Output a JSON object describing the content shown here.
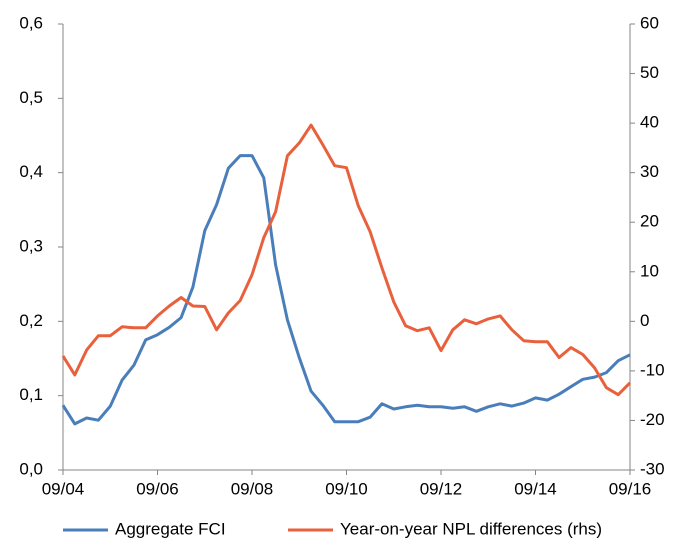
{
  "chart_data": {
    "type": "line",
    "categories": [
      "09/04",
      null,
      null,
      null,
      null,
      null,
      null,
      null,
      "09/06",
      null,
      null,
      null,
      null,
      null,
      null,
      null,
      "09/08",
      null,
      null,
      null,
      null,
      null,
      null,
      null,
      "09/10",
      null,
      null,
      null,
      null,
      null,
      null,
      null,
      "09/12",
      null,
      null,
      null,
      null,
      null,
      null,
      null,
      "09/14",
      null,
      null,
      null,
      null,
      null,
      null,
      null,
      "09/16"
    ],
    "series": [
      {
        "name": "Aggregate FCI",
        "color": "#4a7ebb",
        "values": [
          0.087,
          0.062,
          0.07,
          0.067,
          0.086,
          0.121,
          0.141,
          0.175,
          0.182,
          0.192,
          0.205,
          0.246,
          0.322,
          0.357,
          0.406,
          0.423,
          0.423,
          0.393,
          0.276,
          0.202,
          0.151,
          0.106,
          0.087,
          0.065,
          0.065,
          0.065,
          0.071,
          0.089,
          0.082,
          0.085,
          0.087,
          0.085,
          0.085,
          0.083,
          0.085,
          0.079,
          0.085,
          0.089,
          0.086,
          0.09,
          0.097,
          0.094,
          0.102,
          0.112,
          0.122,
          0.125,
          0.131,
          0.147,
          0.155
        ]
      },
      {
        "name": "Year-on-year NPL differences (rhs)",
        "color": "#e8603c",
        "axis": "y2",
        "values": [
          -7,
          -10.8,
          -5.8,
          -2.9,
          -2.9,
          -1.1,
          -1.3,
          -1.3,
          1.1,
          3.1,
          4.8,
          3.1,
          3,
          -1.7,
          1.7,
          4.2,
          9.4,
          16.9,
          22.1,
          33.4,
          36,
          39.6,
          35.6,
          31.4,
          31,
          23.3,
          18.1,
          10.8,
          3.9,
          -0.9,
          -1.9,
          -1.3,
          -5.9,
          -1.7,
          0.3,
          -0.5,
          0.5,
          1.1,
          -1.7,
          -3.9,
          -4.1,
          -4.1,
          -7.3,
          -5.3,
          -6.7,
          -9.4,
          -13.4,
          -14.8,
          -12.4
        ]
      }
    ],
    "ylim": [
      0,
      0.6
    ],
    "yticks": [
      {
        "value": 0,
        "label": "0,0"
      },
      {
        "value": 0.1,
        "label": "0,1"
      },
      {
        "value": 0.2,
        "label": "0,2"
      },
      {
        "value": 0.3,
        "label": "0,3"
      },
      {
        "value": 0.4,
        "label": "0,4"
      },
      {
        "value": 0.5,
        "label": "0,5"
      },
      {
        "value": 0.6,
        "label": "0,6"
      }
    ],
    "y2lim": [
      -30,
      60
    ],
    "y2ticks": [
      -30,
      -20,
      -10,
      0,
      10,
      20,
      30,
      40,
      50,
      60
    ],
    "grid": false,
    "legend": "bottom"
  }
}
